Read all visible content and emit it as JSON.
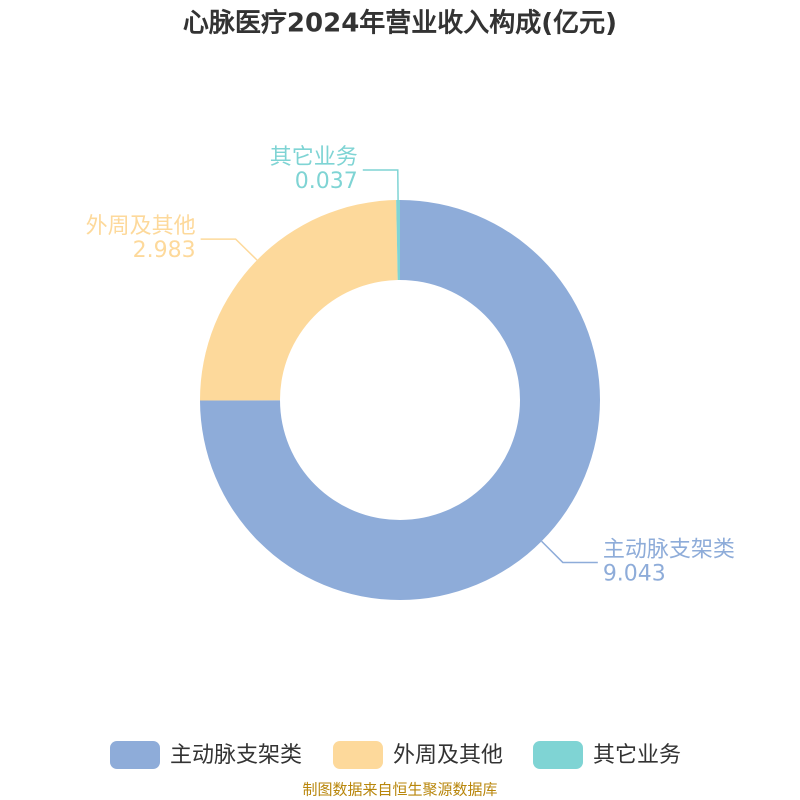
{
  "chart_data": {
    "type": "donut",
    "title": "心脉医疗2024年营业收入构成(亿元)",
    "categories": [
      "主动脉支架类",
      "外周及其他",
      "其它业务"
    ],
    "values": [
      9.043,
      2.983,
      0.037
    ],
    "colors": [
      "#8eacd9",
      "#fdd99b",
      "#7fd4d4"
    ],
    "source": "制图数据来自恒生聚源数据库"
  }
}
